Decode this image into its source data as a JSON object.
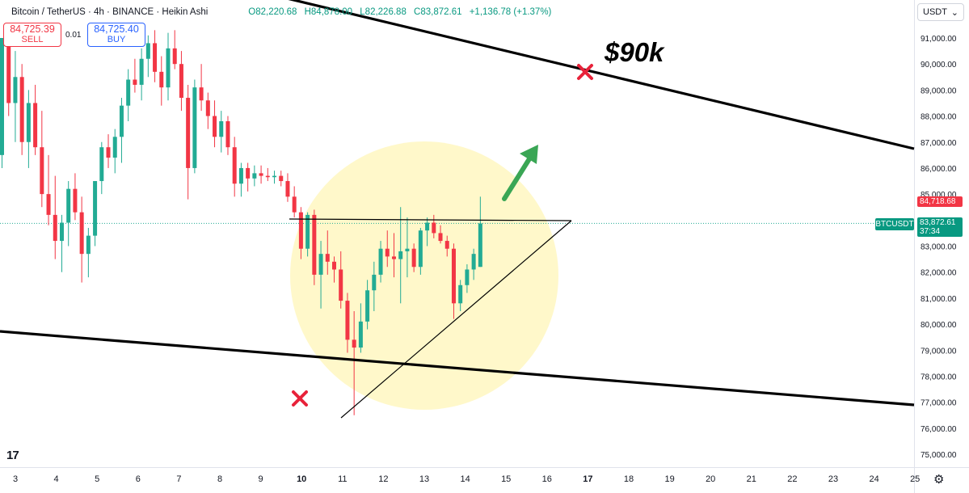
{
  "header": {
    "symbol": "Bitcoin / TetherUS · 4h · BINANCE · Heikin Ashi",
    "open": "O82,220.68",
    "high": "H84,878.00",
    "low": "L82,226.88",
    "close": "C83,872.61",
    "change": "+1,136.78 (+1.37%)"
  },
  "trade": {
    "sell_price": "84,725.39",
    "sell_label": "SELL",
    "spread": "0.01",
    "buy_price": "84,725.40",
    "buy_label": "BUY"
  },
  "currency": "USDT",
  "annotation": "$90k",
  "price_tag": {
    "symbol": "BTCUSDT",
    "price": "83,872.61",
    "countdown": "37:34"
  },
  "red_price": "84,718.68",
  "colors": {
    "up": "#22ab94",
    "down": "#f23645",
    "line": "#000000",
    "circle": "#fff6b8",
    "arrow": "#3aa655"
  },
  "chart_data": {
    "type": "candlestick",
    "y_ticks": [
      "91,000.00",
      "90,000.00",
      "89,000.00",
      "88,000.00",
      "87,000.00",
      "86,000.00",
      "85,000.00",
      "84,000.00",
      "83,000.00",
      "82,000.00",
      "81,000.00",
      "80,000.00",
      "79,000.00",
      "78,000.00",
      "77,000.00",
      "76,000.00",
      "75,000.00"
    ],
    "x_ticks": [
      "3",
      "4",
      "5",
      "6",
      "7",
      "8",
      "9",
      "10",
      "11",
      "12",
      "13",
      "14",
      "15",
      "16",
      "17",
      "18",
      "19",
      "20",
      "21",
      "22",
      "23",
      "24",
      "25"
    ],
    "ylim": [
      74500,
      91800
    ],
    "candles": [
      [
        86500,
        91000,
        86000,
        91000
      ],
      [
        91000,
        91500,
        88000,
        88500
      ],
      [
        88500,
        90500,
        87000,
        89500
      ],
      [
        89500,
        90000,
        86500,
        87000
      ],
      [
        87000,
        89000,
        86000,
        88500
      ],
      [
        88500,
        89200,
        86500,
        86800
      ],
      [
        86800,
        88200,
        84500,
        85000
      ],
      [
        85000,
        86500,
        83800,
        84200
      ],
      [
        84200,
        85700,
        82500,
        83200
      ],
      [
        83200,
        84200,
        82000,
        83900
      ],
      [
        83900,
        85500,
        83000,
        85200
      ],
      [
        85200,
        85800,
        84000,
        84300
      ],
      [
        84300,
        84900,
        81600,
        82700
      ],
      [
        82700,
        83700,
        81800,
        83400
      ],
      [
        83400,
        85500,
        83000,
        85500
      ],
      [
        85500,
        87000,
        85000,
        86800
      ],
      [
        86800,
        87300,
        86000,
        86400
      ],
      [
        86400,
        87500,
        85800,
        87200
      ],
      [
        87200,
        88700,
        86200,
        88400
      ],
      [
        88400,
        89800,
        87800,
        89400
      ],
      [
        89400,
        90200,
        88900,
        89200
      ],
      [
        89200,
        90600,
        88600,
        90200
      ],
      [
        90200,
        91100,
        89500,
        90800
      ],
      [
        90800,
        91300,
        89300,
        89700
      ],
      [
        89700,
        90300,
        88400,
        89100
      ],
      [
        89100,
        91200,
        88600,
        90600
      ],
      [
        90600,
        91300,
        89800,
        90000
      ],
      [
        90000,
        90500,
        88200,
        88700
      ],
      [
        88700,
        89200,
        84800,
        86000
      ],
      [
        86000,
        89400,
        85800,
        89100
      ],
      [
        89100,
        90000,
        88200,
        88600
      ],
      [
        88600,
        88900,
        87500,
        88000
      ],
      [
        88000,
        88600,
        86800,
        87200
      ],
      [
        87200,
        88200,
        86600,
        87800
      ],
      [
        87800,
        88000,
        86500,
        86800
      ],
      [
        86800,
        87200,
        84900,
        85400
      ],
      [
        85400,
        86200,
        84900,
        86000
      ],
      [
        86000,
        86200,
        85100,
        85600
      ],
      [
        85600,
        86100,
        85300,
        85800
      ],
      [
        85800,
        86100,
        85400,
        85700
      ],
      [
        85700,
        86000,
        85500,
        85650
      ],
      [
        85650,
        85900,
        85400,
        85700
      ],
      [
        85700,
        85900,
        85300,
        85500
      ],
      [
        85500,
        85800,
        84700,
        84900
      ],
      [
        84900,
        85300,
        84100,
        84300
      ],
      [
        84300,
        84500,
        82500,
        82900
      ],
      [
        82900,
        84300,
        82600,
        84200
      ],
      [
        84200,
        84400,
        81500,
        81900
      ],
      [
        81900,
        83200,
        80600,
        82700
      ],
      [
        82700,
        83600,
        81900,
        82400
      ],
      [
        82400,
        82600,
        81600,
        82100
      ],
      [
        82100,
        82800,
        80600,
        80900
      ],
      [
        80900,
        81200,
        78900,
        79400
      ],
      [
        79400,
        80500,
        76500,
        79100
      ],
      [
        79100,
        80800,
        78900,
        80100
      ],
      [
        80100,
        81700,
        79800,
        81300
      ],
      [
        81300,
        82400,
        80500,
        81900
      ],
      [
        81900,
        83200,
        81600,
        82900
      ],
      [
        82900,
        83600,
        82200,
        82600
      ],
      [
        82600,
        83500,
        81800,
        82500
      ],
      [
        82500,
        84500,
        80800,
        82800
      ],
      [
        82800,
        84100,
        81800,
        82900
      ],
      [
        82900,
        83100,
        82000,
        82200
      ],
      [
        82200,
        83700,
        81900,
        83600
      ],
      [
        83600,
        84100,
        83000,
        83900
      ],
      [
        83900,
        84200,
        83300,
        83500
      ],
      [
        83500,
        83800,
        83100,
        83200
      ],
      [
        83200,
        83400,
        82600,
        82900
      ],
      [
        82900,
        83100,
        80200,
        80800
      ],
      [
        80800,
        81700,
        80500,
        81500
      ],
      [
        81500,
        82300,
        81200,
        82100
      ],
      [
        82100,
        82900,
        81700,
        82700
      ],
      [
        82200,
        84900,
        82200,
        83872
      ]
    ]
  }
}
